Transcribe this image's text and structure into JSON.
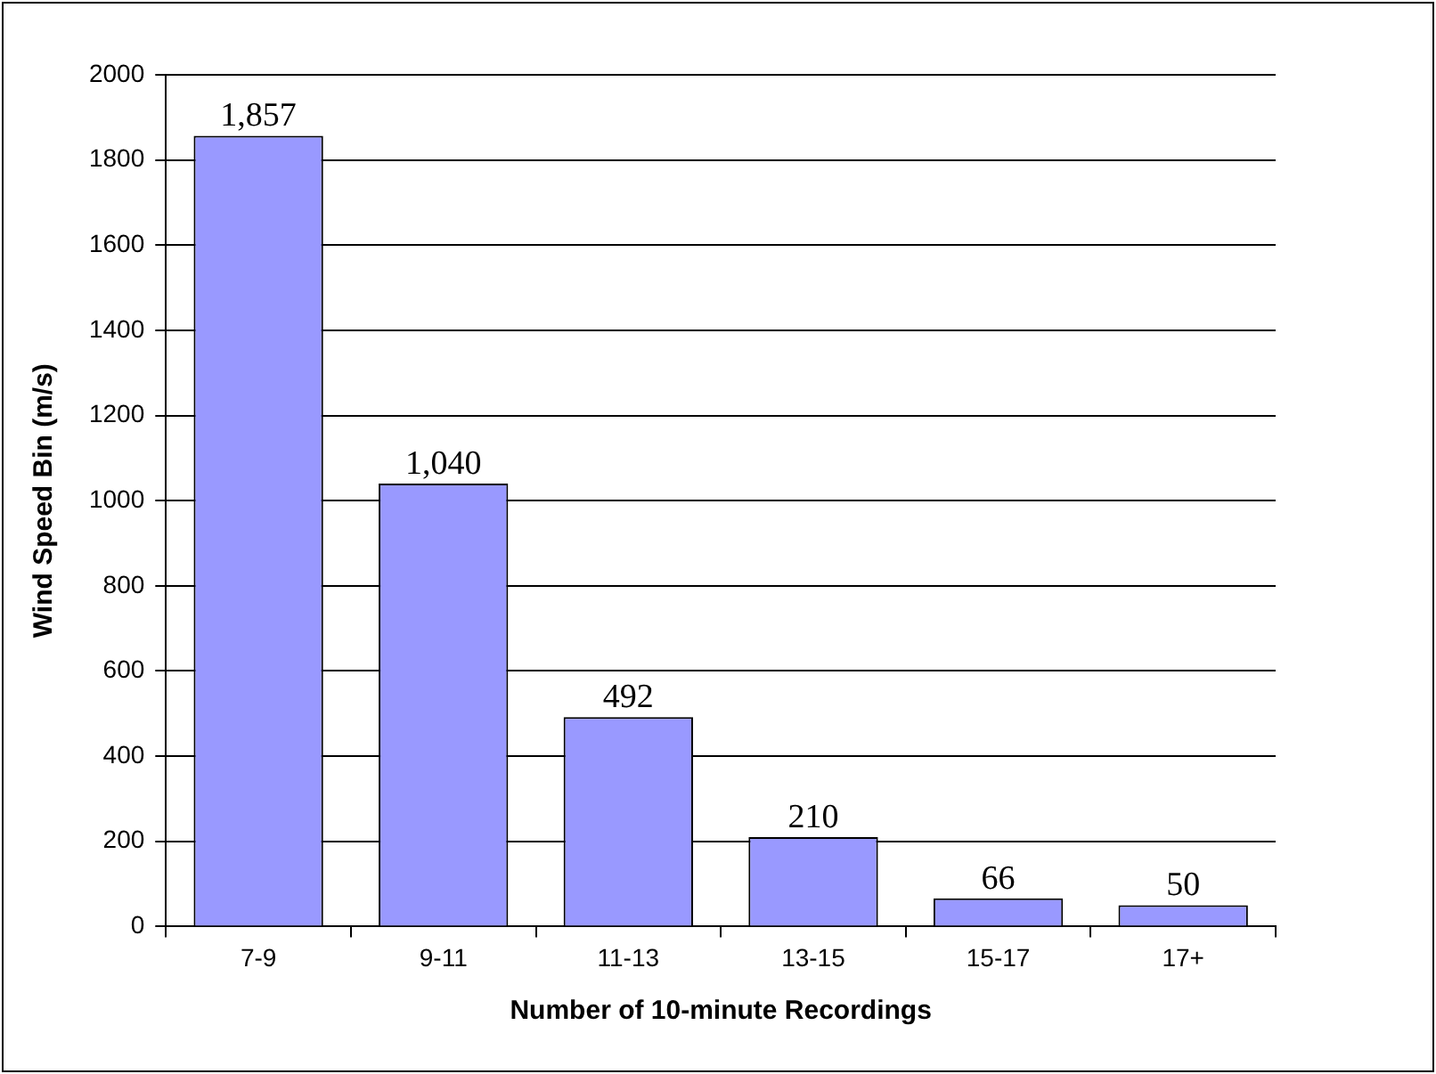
{
  "chart_data": {
    "type": "bar",
    "xlabel": "Number of 10-minute Recordings",
    "ylabel": "Wind Speed Bin (m/s)",
    "categories": [
      "7-9",
      "9-11",
      "11-13",
      "13-15",
      "15-17",
      "17+"
    ],
    "values": [
      1857,
      1040,
      492,
      210,
      66,
      50
    ],
    "value_labels": [
      "1,857",
      "1,040",
      "492",
      "210",
      "66",
      "50"
    ],
    "color": "#9999ff",
    "ylim": [
      0,
      2000
    ],
    "yticks": [
      0,
      200,
      400,
      600,
      800,
      1000,
      1200,
      1400,
      1600,
      1800,
      2000
    ],
    "grid": "y",
    "legend": false
  }
}
